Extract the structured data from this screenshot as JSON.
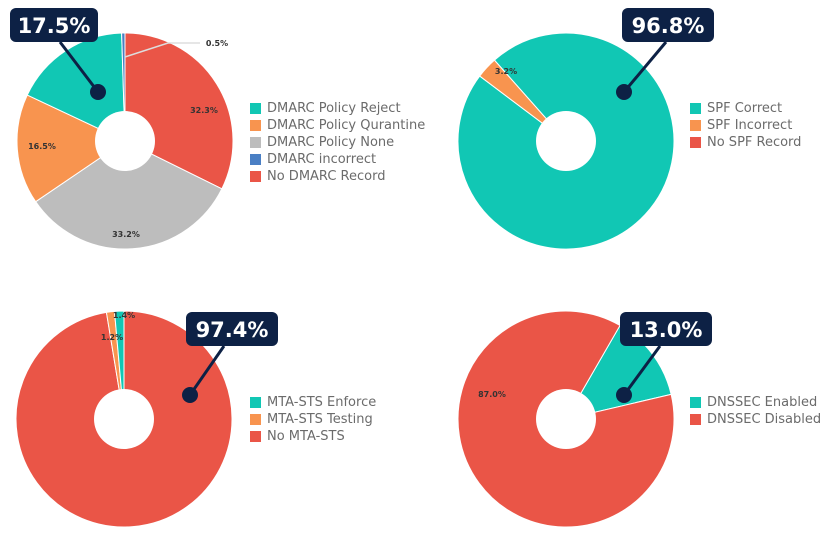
{
  "chart_data": [
    {
      "type": "pie",
      "callout": "17.5%",
      "categories": [
        "DMARC Policy Reject",
        "DMARC Policy Qurantine",
        "DMARC Policy None",
        "DMARC incorrect",
        "No DMARC Record"
      ],
      "values": [
        17.5,
        16.5,
        33.2,
        0.5,
        32.3
      ],
      "value_labels": [
        "",
        "16.5%",
        "33.2%",
        "0.5%",
        "32.3%"
      ],
      "colors": [
        "#11c7b4",
        "#f8944f",
        "#bdbdbd",
        "#4a7fc4",
        "#ea5547"
      ]
    },
    {
      "type": "pie",
      "callout": "96.8%",
      "categories": [
        "SPF Correct",
        "SPF Incorrect",
        "No SPF Record"
      ],
      "values": [
        96.8,
        3.2,
        0
      ],
      "value_labels": [
        "",
        "3.2%",
        ""
      ],
      "colors": [
        "#11c7b4",
        "#f8944f",
        "#ea5547"
      ]
    },
    {
      "type": "pie",
      "callout": "97.4%",
      "categories": [
        "MTA-STS Enforce",
        "MTA-STS Testing",
        "No MTA-STS"
      ],
      "values": [
        1.4,
        1.2,
        97.4
      ],
      "value_labels": [
        "1.4%",
        "1.2%",
        ""
      ],
      "colors": [
        "#11c7b4",
        "#f8944f",
        "#ea5547"
      ]
    },
    {
      "type": "pie",
      "callout": "13.0%",
      "categories": [
        "DNSSEC Enabled",
        "DNSSEC Disabled"
      ],
      "values": [
        13.0,
        87.0
      ],
      "value_labels": [
        "",
        "87.0%"
      ],
      "colors": [
        "#11c7b4",
        "#ea5547"
      ]
    }
  ]
}
